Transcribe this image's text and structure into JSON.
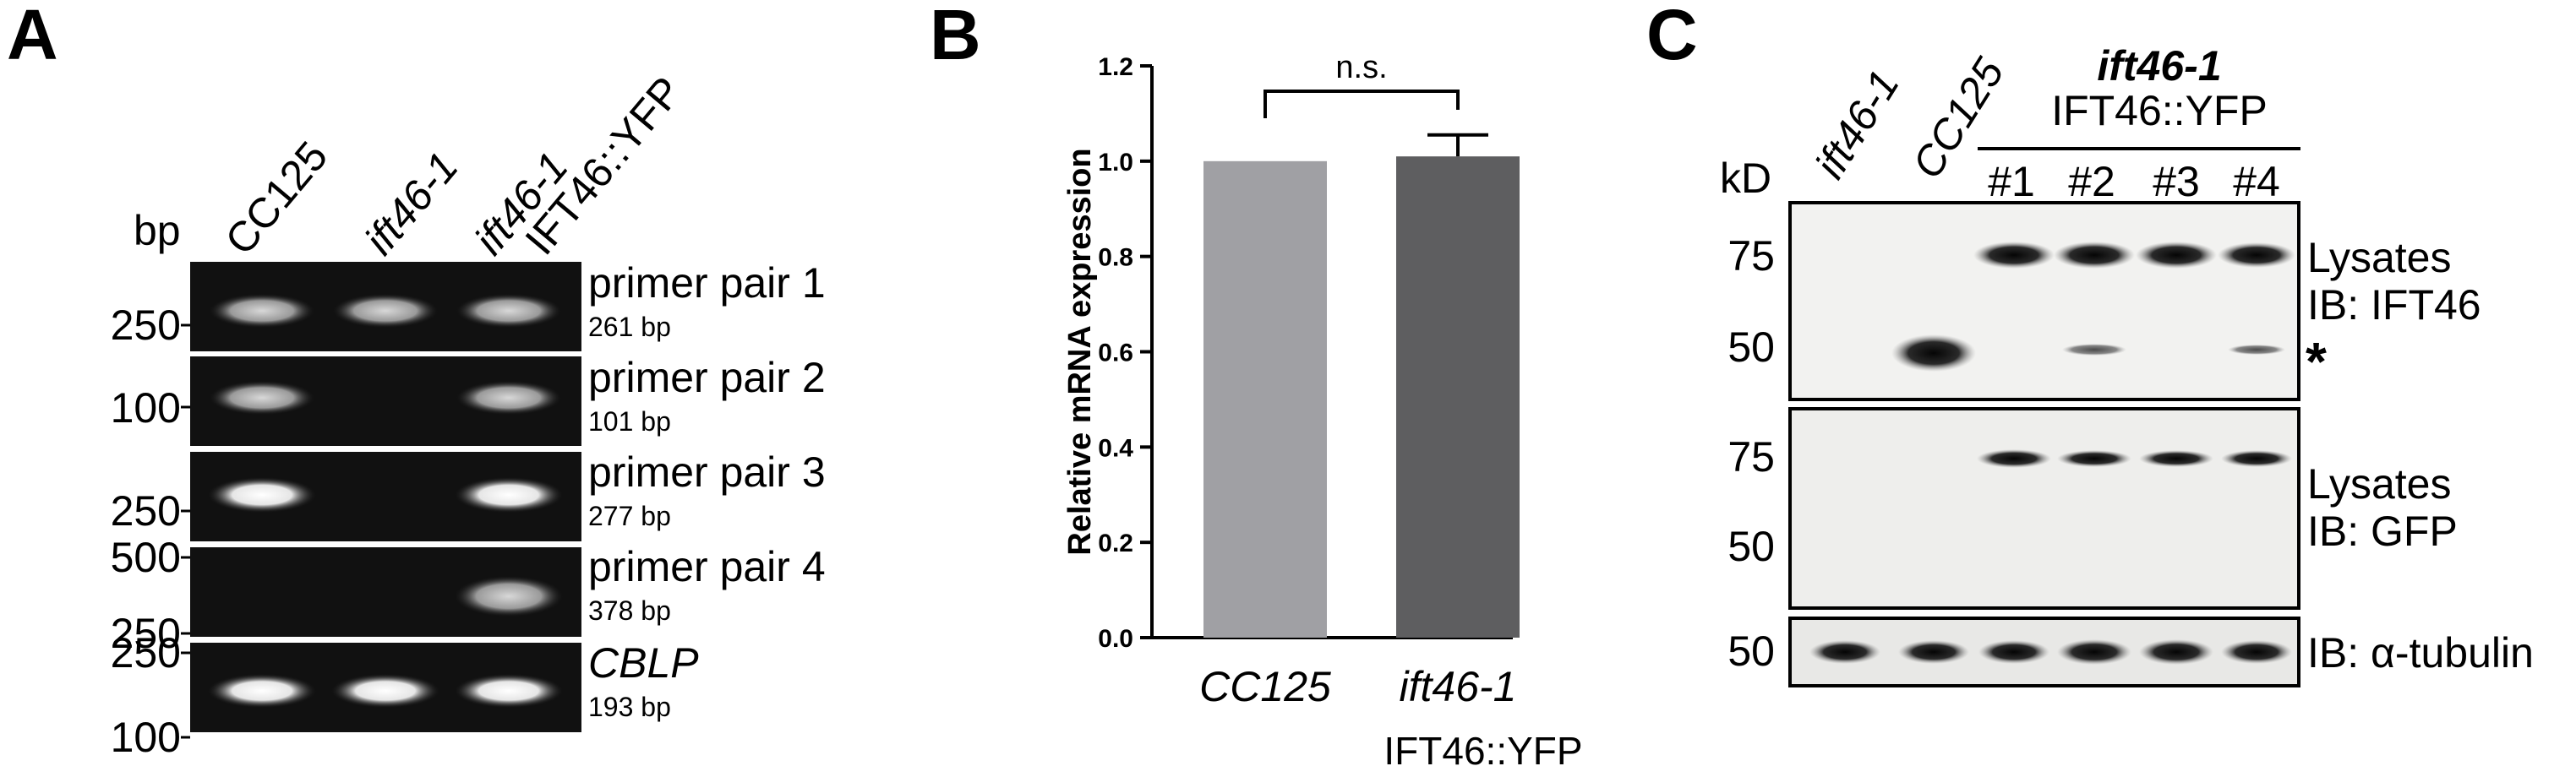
{
  "panelA": {
    "letter": "A",
    "bp_label": "bp",
    "lanes": [
      {
        "label": "CC125",
        "italic": false
      },
      {
        "label": "ift46-1",
        "italic": true
      },
      {
        "label": "ift46-1",
        "italic": true,
        "sublabel": "IFT46::YFP"
      }
    ],
    "gels": [
      {
        "name": "primer pair 1",
        "size": "261 bp",
        "markers": [
          "250"
        ],
        "italic": false
      },
      {
        "name": "primer pair 2",
        "size": "101 bp",
        "markers": [
          "100"
        ],
        "italic": false
      },
      {
        "name": "primer pair 3",
        "size": "277 bp",
        "markers": [
          "250"
        ],
        "italic": false
      },
      {
        "name": "primer pair 4",
        "size": "378 bp",
        "markers": [
          "500",
          "250"
        ],
        "italic": false
      },
      {
        "name": "CBLP",
        "size": "193 bp",
        "markers": [
          "250",
          "100"
        ],
        "italic": true
      }
    ]
  },
  "panelB": {
    "letter": "B",
    "chart_data": {
      "type": "bar",
      "categories": [
        "CC125",
        "ift46-1"
      ],
      "category_sublabels": [
        "",
        "IFT46::YFP"
      ],
      "values": [
        1.0,
        1.01
      ],
      "errors": [
        0,
        0.045
      ],
      "colors": [
        "#a0a0a4",
        "#5e5e60"
      ],
      "ylabel": "Relative mRNA expression",
      "ylim": [
        0,
        1.2
      ],
      "yticks": [
        "0.0",
        "0.2",
        "0.4",
        "0.6",
        "0.8",
        "1.0",
        "1.2"
      ],
      "annotation": "n.s."
    }
  },
  "panelC": {
    "letter": "C",
    "kd_label": "kD",
    "lanes": [
      "ift46-1",
      "CC125",
      "#1",
      "#2",
      "#3",
      "#4"
    ],
    "group_label": "ift46-1",
    "group_sublabel": "IFT46::YFP",
    "blots": [
      {
        "label1": "Lysates",
        "label2": "IB: IFT46",
        "markers": [
          "75",
          "50"
        ],
        "star": "*"
      },
      {
        "label1": "Lysates",
        "label2": "IB: GFP",
        "markers": [
          "75",
          "50"
        ]
      },
      {
        "label1": "IB: α-tubulin",
        "markers": [
          "50"
        ]
      }
    ]
  }
}
